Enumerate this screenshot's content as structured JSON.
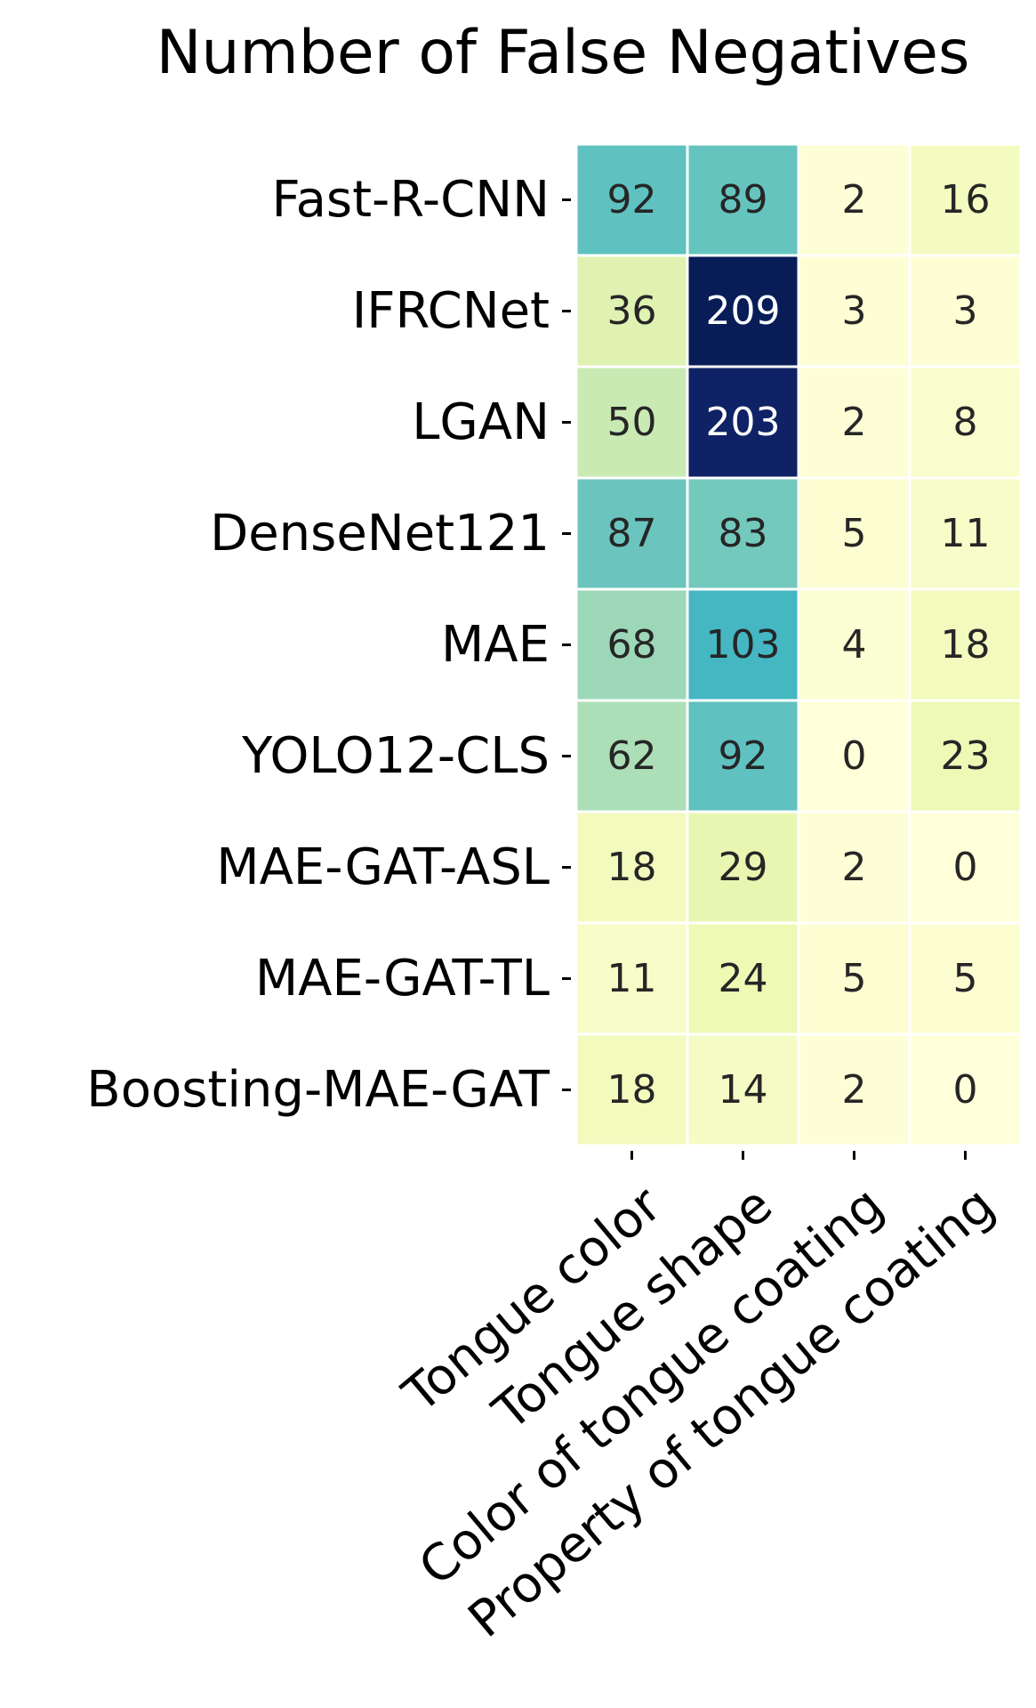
{
  "chart_data": {
    "type": "heatmap",
    "title": "Number of False Negatives",
    "rows": [
      "Fast-R-CNN",
      "IFRCNet",
      "LGAN",
      "DenseNet121",
      "MAE",
      "YOLO12-CLS",
      "MAE-GAT-ASL",
      "MAE-GAT-TL",
      "Boosting-MAE-GAT"
    ],
    "columns": [
      "Tongue color",
      "Tongue shape",
      "Color of tongue coating",
      "Property of tongue coating"
    ],
    "values": [
      [
        92,
        89,
        2,
        16
      ],
      [
        36,
        209,
        3,
        3
      ],
      [
        50,
        203,
        2,
        8
      ],
      [
        87,
        83,
        5,
        11
      ],
      [
        68,
        103,
        4,
        18
      ],
      [
        62,
        92,
        0,
        23
      ],
      [
        18,
        29,
        2,
        0
      ],
      [
        11,
        24,
        5,
        5
      ],
      [
        18,
        14,
        2,
        0
      ]
    ],
    "value_range": [
      0,
      209
    ],
    "colormap": "YlGnBu",
    "colormap_stops": [
      "#ffffd9",
      "#edf8b1",
      "#c7e9b4",
      "#7fcdbb",
      "#41b6c4",
      "#1d91c0",
      "#225ea8",
      "#253494",
      "#081d58"
    ],
    "light_text_color": "#ffffff",
    "dark_text_color": "#262626",
    "cell_border_color": "#ffffff"
  }
}
